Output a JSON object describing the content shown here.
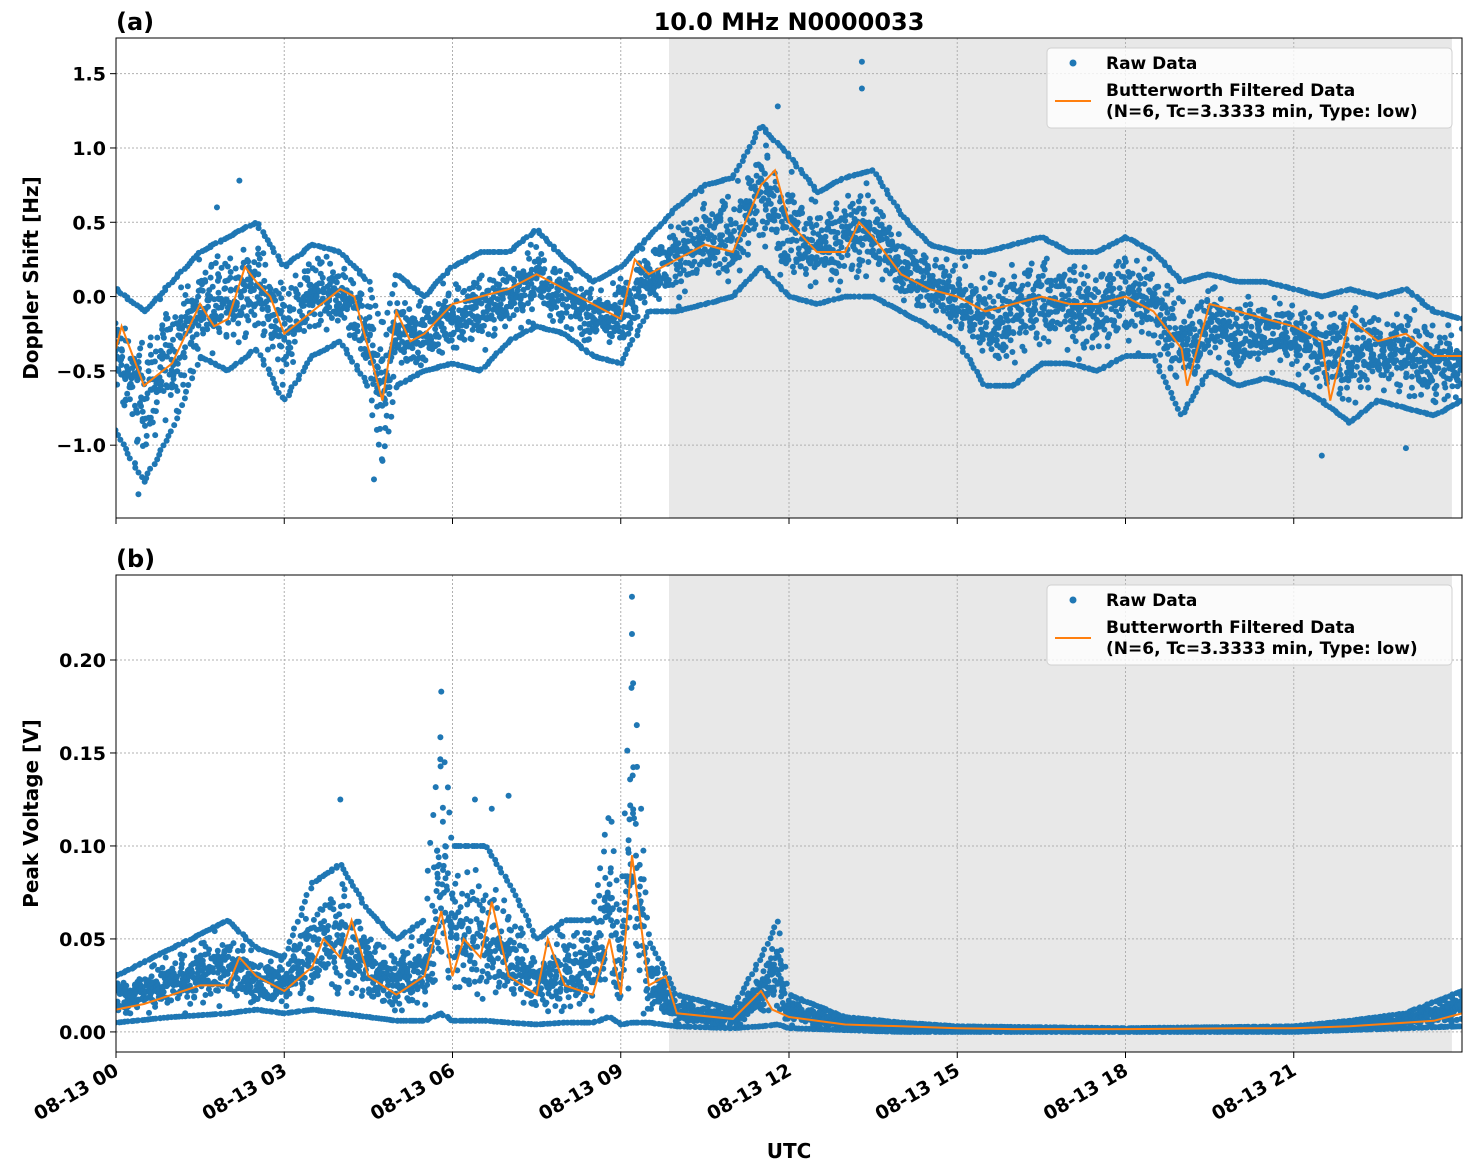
{
  "chart_data": [
    {
      "type": "scatter",
      "panel_label": "(a)",
      "title": "10.0 MHz N0000033",
      "xlabel": "",
      "ylabel": "Doppler Shift [Hz]",
      "xlim_hours": [
        0,
        24
      ],
      "ylim": [
        -1.49,
        1.74
      ],
      "yticks": [
        -1.0,
        -0.5,
        0.0,
        0.5,
        1.0,
        1.5
      ],
      "ytick_labels": [
        "−1.0",
        "−0.5",
        "0.0",
        "0.5",
        "1.0",
        "1.5"
      ],
      "grid": true,
      "shaded_region_hours": [
        9.86,
        23.82
      ],
      "legend": {
        "placement": "top-right",
        "entries": [
          "Raw Data",
          "Butterworth Filtered Data",
          "(N=6, Tc=3.3333 min, Type: low)"
        ]
      },
      "series": [
        {
          "name": "Raw Data",
          "kind": "scatter",
          "color": "#1f77b4",
          "envelope_hour_lo_hi": [
            [
              0,
              -0.9,
              0.05
            ],
            [
              0.5,
              -1.25,
              -0.1
            ],
            [
              1,
              -0.9,
              0.1
            ],
            [
              1.5,
              -0.4,
              0.3
            ],
            [
              2,
              -0.5,
              0.4
            ],
            [
              2.5,
              -0.35,
              0.5
            ],
            [
              3,
              -0.7,
              0.2
            ],
            [
              3.5,
              -0.4,
              0.35
            ],
            [
              4,
              -0.3,
              0.3
            ],
            [
              4.5,
              -0.6,
              0.1
            ],
            [
              4.75,
              -1.15,
              -0.2
            ],
            [
              5,
              -0.6,
              0.15
            ],
            [
              5.5,
              -0.5,
              0.0
            ],
            [
              6,
              -0.45,
              0.2
            ],
            [
              6.5,
              -0.5,
              0.3
            ],
            [
              7,
              -0.3,
              0.3
            ],
            [
              7.5,
              -0.2,
              0.45
            ],
            [
              8,
              -0.25,
              0.25
            ],
            [
              8.5,
              -0.4,
              0.1
            ],
            [
              9,
              -0.45,
              0.2
            ],
            [
              9.5,
              -0.1,
              0.4
            ],
            [
              10,
              -0.1,
              0.6
            ],
            [
              10.5,
              -0.05,
              0.75
            ],
            [
              11,
              0.0,
              0.8
            ],
            [
              11.5,
              0.2,
              1.15
            ],
            [
              12,
              0.0,
              0.95
            ],
            [
              12.5,
              -0.05,
              0.7
            ],
            [
              13,
              0.0,
              0.8
            ],
            [
              13.5,
              0.0,
              0.85
            ],
            [
              14,
              -0.1,
              0.55
            ],
            [
              14.5,
              -0.2,
              0.35
            ],
            [
              15,
              -0.3,
              0.3
            ],
            [
              15.5,
              -0.6,
              0.3
            ],
            [
              16,
              -0.6,
              0.35
            ],
            [
              16.5,
              -0.45,
              0.4
            ],
            [
              17,
              -0.45,
              0.3
            ],
            [
              17.5,
              -0.5,
              0.3
            ],
            [
              18,
              -0.4,
              0.4
            ],
            [
              18.5,
              -0.4,
              0.3
            ],
            [
              19,
              -0.8,
              0.1
            ],
            [
              19.5,
              -0.5,
              0.15
            ],
            [
              20,
              -0.6,
              0.1
            ],
            [
              20.5,
              -0.55,
              0.1
            ],
            [
              21,
              -0.6,
              0.05
            ],
            [
              21.5,
              -0.7,
              0.0
            ],
            [
              22,
              -0.85,
              0.05
            ],
            [
              22.5,
              -0.7,
              0.0
            ],
            [
              23,
              -0.75,
              0.05
            ],
            [
              23.5,
              -0.8,
              -0.1
            ],
            [
              24,
              -0.7,
              -0.15
            ]
          ],
          "outliers_hour_value": [
            [
              2.2,
              0.78
            ],
            [
              1.8,
              0.6
            ],
            [
              11.8,
              1.28
            ],
            [
              13.3,
              1.58
            ],
            [
              13.3,
              1.4
            ],
            [
              0.4,
              -1.33
            ],
            [
              4.6,
              -1.23
            ],
            [
              21.5,
              -1.07
            ],
            [
              23,
              -1.02
            ]
          ]
        },
        {
          "name": "Butterworth Filtered Data (N=6, Tc=3.3333 min, Type: low)",
          "kind": "line",
          "color": "#ff7f0e",
          "hour_value": [
            [
              0,
              -0.35
            ],
            [
              0.1,
              -0.2
            ],
            [
              0.5,
              -0.6
            ],
            [
              1,
              -0.45
            ],
            [
              1.5,
              -0.05
            ],
            [
              1.75,
              -0.2
            ],
            [
              2,
              -0.15
            ],
            [
              2.3,
              0.2
            ],
            [
              2.5,
              0.1
            ],
            [
              2.75,
              0.0
            ],
            [
              3,
              -0.25
            ],
            [
              3.5,
              -0.1
            ],
            [
              4,
              0.05
            ],
            [
              4.25,
              0.0
            ],
            [
              4.5,
              -0.35
            ],
            [
              4.75,
              -0.7
            ],
            [
              5,
              -0.1
            ],
            [
              5.25,
              -0.3
            ],
            [
              5.5,
              -0.25
            ],
            [
              6,
              -0.05
            ],
            [
              6.5,
              0.0
            ],
            [
              7,
              0.05
            ],
            [
              7.5,
              0.15
            ],
            [
              8,
              0.05
            ],
            [
              8.5,
              -0.05
            ],
            [
              9,
              -0.15
            ],
            [
              9.25,
              0.25
            ],
            [
              9.5,
              0.15
            ],
            [
              10,
              0.25
            ],
            [
              10.5,
              0.35
            ],
            [
              11,
              0.3
            ],
            [
              11.5,
              0.75
            ],
            [
              11.75,
              0.85
            ],
            [
              12,
              0.5
            ],
            [
              12.5,
              0.3
            ],
            [
              13,
              0.3
            ],
            [
              13.25,
              0.5
            ],
            [
              13.5,
              0.4
            ],
            [
              14,
              0.15
            ],
            [
              14.5,
              0.05
            ],
            [
              15,
              0.0
            ],
            [
              15.5,
              -0.1
            ],
            [
              16,
              -0.05
            ],
            [
              16.5,
              0.0
            ],
            [
              17,
              -0.05
            ],
            [
              17.5,
              -0.05
            ],
            [
              18,
              0.0
            ],
            [
              18.5,
              -0.1
            ],
            [
              19,
              -0.35
            ],
            [
              19.1,
              -0.6
            ],
            [
              19.5,
              -0.05
            ],
            [
              20,
              -0.1
            ],
            [
              20.5,
              -0.15
            ],
            [
              21,
              -0.2
            ],
            [
              21.5,
              -0.3
            ],
            [
              21.65,
              -0.7
            ],
            [
              22,
              -0.15
            ],
            [
              22.5,
              -0.3
            ],
            [
              23,
              -0.25
            ],
            [
              23.5,
              -0.4
            ],
            [
              24,
              -0.4
            ]
          ]
        }
      ]
    },
    {
      "type": "scatter",
      "panel_label": "(b)",
      "title": "",
      "xlabel": "UTC",
      "ylabel": "Peak Voltage [V]",
      "xlim_hours": [
        0,
        24
      ],
      "xtick_labels": [
        "08-13 00",
        "08-13 03",
        "08-13 06",
        "08-13 09",
        "08-13 12",
        "08-13 15",
        "08-13 18",
        "08-13 21"
      ],
      "ylim": [
        -0.0108,
        0.2457
      ],
      "yticks": [
        0.0,
        0.05,
        0.1,
        0.15,
        0.2
      ],
      "ytick_labels": [
        "0.00",
        "0.05",
        "0.10",
        "0.15",
        "0.20"
      ],
      "grid": true,
      "shaded_region_hours": [
        9.86,
        23.82
      ],
      "legend": {
        "placement": "top-right",
        "entries": [
          "Raw Data",
          "Butterworth Filtered Data",
          "(N=6, Tc=3.3333 min, Type: low)"
        ]
      },
      "series": [
        {
          "name": "Raw Data",
          "kind": "scatter",
          "color": "#1f77b4",
          "envelope_hour_lo_hi": [
            [
              0,
              0.005,
              0.03
            ],
            [
              1,
              0.008,
              0.045
            ],
            [
              2,
              0.01,
              0.06
            ],
            [
              2.5,
              0.012,
              0.045
            ],
            [
              3,
              0.01,
              0.04
            ],
            [
              3.5,
              0.012,
              0.08
            ],
            [
              4,
              0.01,
              0.09
            ],
            [
              4.5,
              0.008,
              0.065
            ],
            [
              5,
              0.006,
              0.05
            ],
            [
              5.5,
              0.006,
              0.06
            ],
            [
              5.8,
              0.01,
              0.16
            ],
            [
              6,
              0.006,
              0.1
            ],
            [
              6.3,
              0.006,
              0.1
            ],
            [
              6.6,
              0.006,
              0.1
            ],
            [
              7,
              0.005,
              0.08
            ],
            [
              7.5,
              0.004,
              0.05
            ],
            [
              8,
              0.005,
              0.06
            ],
            [
              8.5,
              0.005,
              0.06
            ],
            [
              8.8,
              0.008,
              0.12
            ],
            [
              9,
              0.004,
              0.05
            ],
            [
              9.2,
              0.005,
              0.2
            ],
            [
              9.5,
              0.005,
              0.05
            ],
            [
              10,
              0.003,
              0.02
            ],
            [
              11,
              0.002,
              0.012
            ],
            [
              11.5,
              0.003,
              0.04
            ],
            [
              11.8,
              0.004,
              0.06
            ],
            [
              12,
              0.002,
              0.02
            ],
            [
              13,
              0.001,
              0.008
            ],
            [
              14,
              0.0,
              0.005
            ],
            [
              15,
              0.0,
              0.003
            ],
            [
              18,
              0.0,
              0.002
            ],
            [
              21,
              0.0,
              0.003
            ],
            [
              22,
              0.001,
              0.006
            ],
            [
              23,
              0.002,
              0.01
            ],
            [
              24,
              0.003,
              0.022
            ]
          ],
          "outliers_hour_value": [
            [
              9.2,
              0.234
            ],
            [
              9.2,
              0.214
            ],
            [
              5.8,
              0.183
            ],
            [
              4,
              0.125
            ],
            [
              7,
              0.127
            ],
            [
              6.4,
              0.125
            ],
            [
              6.7,
              0.12
            ]
          ]
        },
        {
          "name": "Butterworth Filtered Data (N=6, Tc=3.3333 min, Type: low)",
          "kind": "line",
          "color": "#ff7f0e",
          "hour_value": [
            [
              0,
              0.012
            ],
            [
              0.5,
              0.015
            ],
            [
              1,
              0.02
            ],
            [
              1.5,
              0.025
            ],
            [
              2,
              0.025
            ],
            [
              2.2,
              0.04
            ],
            [
              2.5,
              0.03
            ],
            [
              3,
              0.022
            ],
            [
              3.5,
              0.035
            ],
            [
              3.7,
              0.05
            ],
            [
              4,
              0.04
            ],
            [
              4.2,
              0.06
            ],
            [
              4.5,
              0.03
            ],
            [
              5,
              0.02
            ],
            [
              5.5,
              0.03
            ],
            [
              5.8,
              0.065
            ],
            [
              6,
              0.03
            ],
            [
              6.2,
              0.05
            ],
            [
              6.5,
              0.04
            ],
            [
              6.7,
              0.07
            ],
            [
              7,
              0.03
            ],
            [
              7.5,
              0.02
            ],
            [
              7.7,
              0.05
            ],
            [
              8,
              0.025
            ],
            [
              8.5,
              0.02
            ],
            [
              8.8,
              0.05
            ],
            [
              9,
              0.02
            ],
            [
              9.2,
              0.095
            ],
            [
              9.5,
              0.025
            ],
            [
              9.8,
              0.03
            ],
            [
              10,
              0.01
            ],
            [
              11,
              0.007
            ],
            [
              11.5,
              0.022
            ],
            [
              11.7,
              0.012
            ],
            [
              12,
              0.008
            ],
            [
              13,
              0.004
            ],
            [
              14,
              0.003
            ],
            [
              15,
              0.002
            ],
            [
              16,
              0.0015
            ],
            [
              18,
              0.0015
            ],
            [
              20,
              0.002
            ],
            [
              21,
              0.002
            ],
            [
              22,
              0.003
            ],
            [
              23,
              0.005
            ],
            [
              23.5,
              0.006
            ],
            [
              24,
              0.01
            ]
          ]
        }
      ]
    }
  ]
}
